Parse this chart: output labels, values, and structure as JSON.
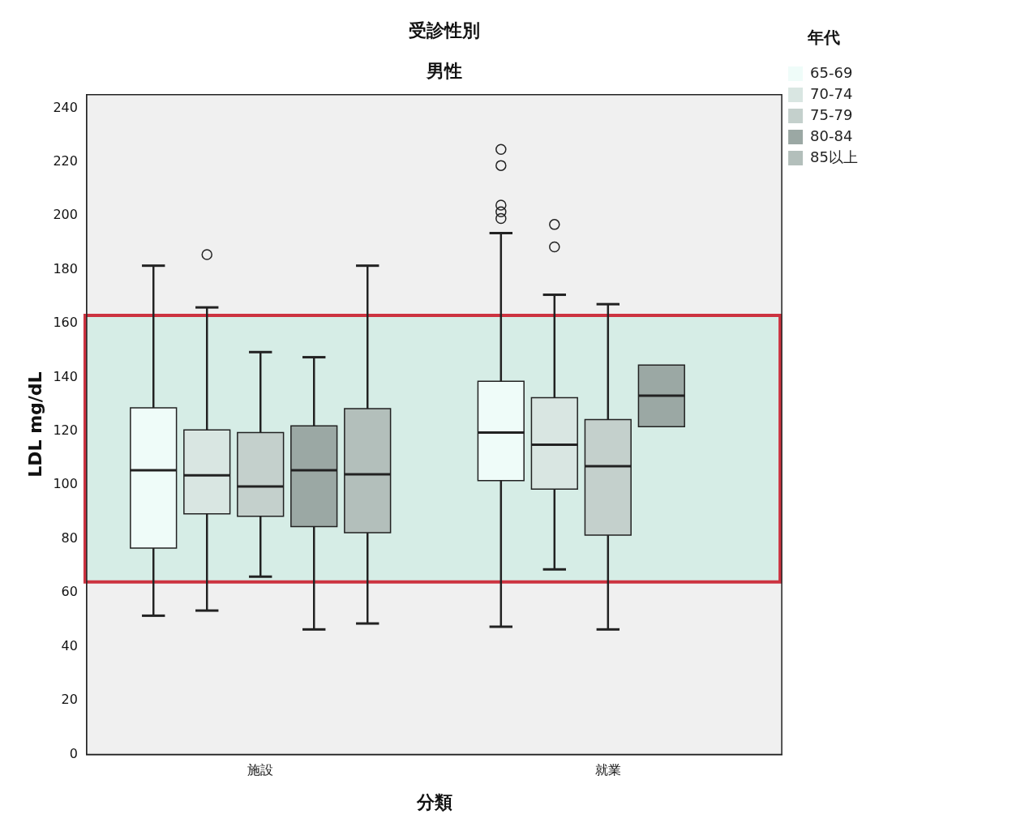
{
  "chart_data": {
    "type": "box",
    "title": "受診性別",
    "subtitle": "男性",
    "xlabel": "分類",
    "ylabel": "LDL mg/dL",
    "legend_title": "年代",
    "legend": "top right",
    "categories": [
      "施設",
      "就業"
    ],
    "ylim": [
      0,
      245
    ],
    "yticks": [
      0,
      20,
      40,
      60,
      80,
      100,
      120,
      140,
      160,
      180,
      200,
      220,
      240
    ],
    "bands": [
      {
        "axis": "y",
        "from": 64,
        "to": 163,
        "color": "#d6ede6"
      }
    ],
    "series": [
      {
        "name": "65-69",
        "color": "#effcf9",
        "boxes": [
          {
            "low": 51.5,
            "q1": 76.6,
            "median": 105.5,
            "q3": 128.7,
            "high": 181.5
          },
          {
            "low": 47.4,
            "q1": 101.7,
            "median": 119.5,
            "q3": 138.6,
            "high": 193.6,
            "outliers": [
              224.7,
              218.7,
              204,
              201.5,
              199
            ]
          }
        ]
      },
      {
        "name": "70-74",
        "color": "#d9e6e2",
        "boxes": [
          {
            "low": 53.4,
            "q1": 89.3,
            "median": 103.6,
            "q3": 120.5,
            "high": 166,
            "outliers": [
              185.6
            ]
          },
          {
            "low": 68.7,
            "q1": 98.5,
            "median": 115,
            "q3": 132.5,
            "high": 170.7,
            "outliers": [
              196.8,
              188.5
            ]
          }
        ]
      },
      {
        "name": "75-79",
        "color": "#c4d0cc",
        "boxes": [
          {
            "low": 66,
            "q1": 88.4,
            "median": 99.5,
            "q3": 119.5,
            "high": 149.4
          },
          {
            "low": 46.4,
            "q1": 81.4,
            "median": 107,
            "q3": 124.3,
            "high": 167.2
          }
        ]
      },
      {
        "name": "80-84",
        "color": "#9ba8a4",
        "boxes": [
          {
            "low": 46.4,
            "q1": 84.6,
            "median": 105.5,
            "q3": 122,
            "high": 147.5
          },
          {
            "low": 121.7,
            "q1": 121.7,
            "median": 133.2,
            "q3": 144.6,
            "high": 144.6
          }
        ]
      },
      {
        "name": "85以上",
        "color": "#b3bfbb",
        "boxes": [
          {
            "low": 48.6,
            "q1": 82.3,
            "median": 104,
            "q3": 128.4,
            "high": 181.5
          },
          null
        ]
      }
    ]
  }
}
